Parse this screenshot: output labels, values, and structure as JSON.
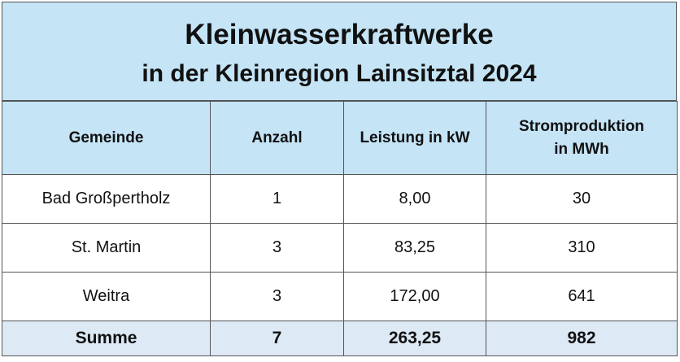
{
  "title": {
    "line1": "Kleinwasserkraftwerke",
    "line2": "in der Kleinregion Lainsitztal 2024"
  },
  "table": {
    "headers": [
      "Gemeinde",
      "Anzahl",
      "Leistung in kW",
      "Stromproduktion in MWh"
    ],
    "rows": [
      [
        "Bad Großpertholz",
        "1",
        "8,00",
        "30"
      ],
      [
        "St. Martin",
        "3",
        "83,25",
        "310"
      ],
      [
        "Weitra",
        "3",
        "172,00",
        "641"
      ]
    ],
    "total": [
      "Summe",
      "7",
      "263,25",
      "982"
    ]
  }
}
